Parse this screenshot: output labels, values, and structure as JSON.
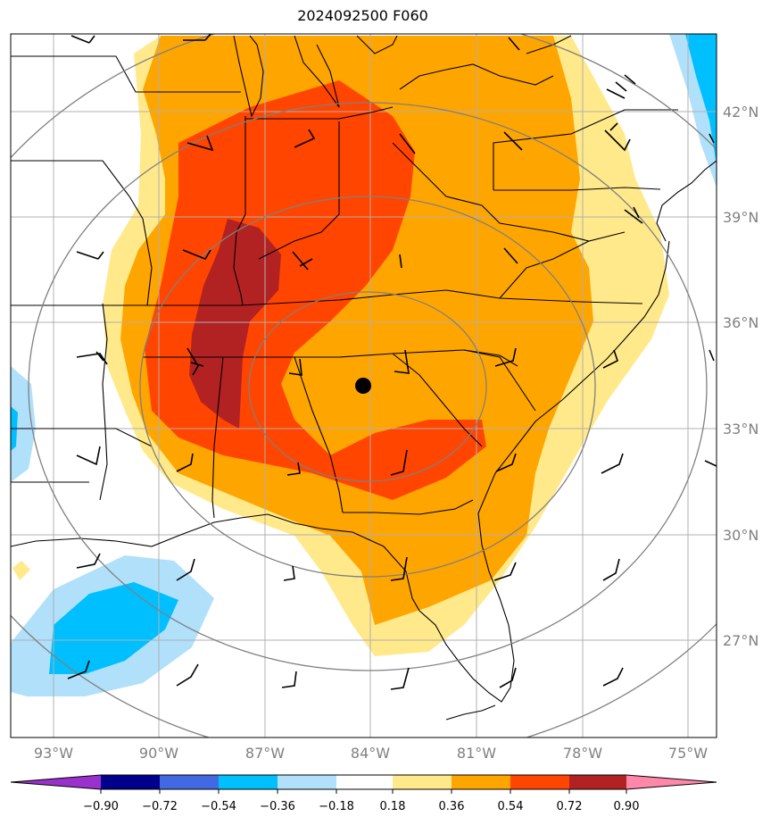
{
  "title": "2024092500 F060",
  "lon_labels": [
    "93°W",
    "90°W",
    "87°W",
    "84°W",
    "81°W",
    "78°W",
    "75°W"
  ],
  "lat_labels": [
    "42°N",
    "39°N",
    "36°N",
    "33°N",
    "30°N",
    "27°N"
  ],
  "colorbar": {
    "ticks": [
      "−0.90",
      "−0.72",
      "−0.54",
      "−0.36",
      "−0.18",
      "0.18",
      "0.36",
      "0.54",
      "0.72",
      "0.90"
    ],
    "colors": [
      "#9932CC",
      "#00008B",
      "#4169E1",
      "#00BFFF",
      "#B0E0FA",
      "#FFFFFF",
      "#FFE98A",
      "#FFA500",
      "#FF4500",
      "#B22222",
      "#FF88AA"
    ]
  },
  "marker": {
    "lon": -84.0,
    "lat": 34.1
  }
}
